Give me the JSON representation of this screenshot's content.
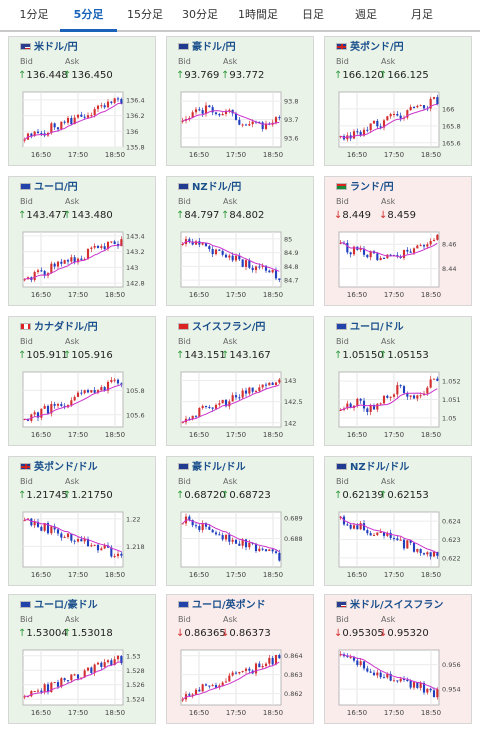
{
  "tabs": [
    {
      "label": "1分足",
      "active": false
    },
    {
      "label": "5分足",
      "active": true
    },
    {
      "label": "15分足",
      "active": false
    },
    {
      "label": "30分足",
      "active": false
    },
    {
      "label": "1時間足",
      "active": false
    },
    {
      "label": "日足",
      "active": false
    },
    {
      "label": "週足",
      "active": false
    },
    {
      "label": "月足",
      "active": false
    }
  ],
  "labels": {
    "bid": "Bid",
    "ask": "Ask"
  },
  "colors": {
    "up_bg": "#eaf3e8",
    "down_bg": "#fbecec",
    "title": "#1a4f8c",
    "up": "#2e9a3a",
    "down": "#d22b2b",
    "ma": "#cc33cc",
    "candle_up": "#d32f2f",
    "candle_down": "#1f3fbf"
  },
  "panels": [
    {
      "name": "米ドル/円",
      "flag": "us",
      "trend": "up",
      "bid": "136.448",
      "ask": "136.450",
      "chart_data": {
        "type": "candlestick",
        "x_ticks": [
          "16:50",
          "17:50",
          "18:50"
        ],
        "y_ticks": [
          "136.4",
          "136.2",
          "136",
          "135.8"
        ],
        "ylim": [
          135.8,
          136.5
        ],
        "trend": "up"
      }
    },
    {
      "name": "豪ドル/円",
      "flag": "au",
      "trend": "up",
      "bid": "93.769",
      "ask": "93.772",
      "chart_data": {
        "type": "candlestick",
        "x_ticks": [
          "16:50",
          "17:50",
          "18:50"
        ],
        "y_ticks": [
          "93.8",
          "93.7",
          "93.6"
        ],
        "ylim": [
          93.55,
          93.85
        ],
        "trend": "flat"
      }
    },
    {
      "name": "英ポンド/円",
      "flag": "gb",
      "trend": "up",
      "bid": "166.120",
      "ask": "166.125",
      "chart_data": {
        "type": "candlestick",
        "x_ticks": [
          "16:50",
          "17:50",
          "18:50"
        ],
        "y_ticks": [
          "166",
          "165.8",
          "165.6"
        ],
        "ylim": [
          165.55,
          166.2
        ],
        "trend": "up"
      }
    },
    {
      "name": "ユーロ/円",
      "flag": "eu",
      "trend": "up",
      "bid": "143.477",
      "ask": "143.480",
      "chart_data": {
        "type": "candlestick",
        "x_ticks": [
          "16:50",
          "17:50",
          "18:50"
        ],
        "y_ticks": [
          "143.4",
          "143.2",
          "143",
          "142.8"
        ],
        "ylim": [
          142.75,
          143.45
        ],
        "trend": "up"
      }
    },
    {
      "name": "NZドル/円",
      "flag": "nz",
      "trend": "up",
      "bid": "84.797",
      "ask": "84.802",
      "chart_data": {
        "type": "candlestick",
        "x_ticks": [
          "16:50",
          "17:50",
          "18:50"
        ],
        "y_ticks": [
          "85",
          "84.9",
          "84.8",
          "84.7"
        ],
        "ylim": [
          84.65,
          85.05
        ],
        "trend": "down"
      }
    },
    {
      "name": "ランド/円",
      "flag": "za",
      "trend": "down",
      "bid": "8.449",
      "ask": "8.459",
      "chart_data": {
        "type": "candlestick",
        "x_ticks": [
          "16:50",
          "17:50",
          "18:50"
        ],
        "y_ticks": [
          "8.46",
          "8.44"
        ],
        "ylim": [
          8.425,
          8.47
        ],
        "trend": "vdip"
      }
    },
    {
      "name": "カナダドル/円",
      "flag": "ca",
      "trend": "up",
      "bid": "105.911",
      "ask": "105.916",
      "chart_data": {
        "type": "candlestick",
        "x_ticks": [
          "16:50",
          "17:50",
          "18:50"
        ],
        "y_ticks": [
          "105.8",
          "105.6"
        ],
        "ylim": [
          105.5,
          105.95
        ],
        "trend": "up"
      }
    },
    {
      "name": "スイスフラン/円",
      "flag": "ch",
      "trend": "up",
      "bid": "143.151",
      "ask": "143.167",
      "chart_data": {
        "type": "candlestick",
        "x_ticks": [
          "16:50",
          "17:50",
          "18:50"
        ],
        "y_ticks": [
          "143",
          "142.5",
          "142"
        ],
        "ylim": [
          141.9,
          143.2
        ],
        "trend": "up"
      }
    },
    {
      "name": "ユーロ/ドル",
      "flag": "eu",
      "trend": "up",
      "bid": "1.05150",
      "ask": "1.05153",
      "chart_data": {
        "type": "candlestick",
        "x_ticks": [
          "16:50",
          "17:50",
          "18:50"
        ],
        "y_ticks": [
          "1.052",
          "1.051",
          "1.05"
        ],
        "ylim": [
          1.0495,
          1.0525
        ],
        "trend": "upvolatile"
      }
    },
    {
      "name": "英ポンド/ドル",
      "flag": "gb",
      "trend": "up",
      "bid": "1.21745",
      "ask": "1.21750",
      "chart_data": {
        "type": "candlestick",
        "x_ticks": [
          "16:50",
          "17:50",
          "18:50"
        ],
        "y_ticks": [
          "1.22",
          "1.218"
        ],
        "ylim": [
          1.2165,
          1.2205
        ],
        "trend": "down"
      }
    },
    {
      "name": "豪ドル/ドル",
      "flag": "au",
      "trend": "up",
      "bid": "0.68720",
      "ask": "0.68723",
      "chart_data": {
        "type": "candlestick",
        "x_ticks": [
          "16:50",
          "17:50",
          "18:50"
        ],
        "y_ticks": [
          "0.689",
          "0.688"
        ],
        "ylim": [
          0.6866,
          0.6893
        ],
        "trend": "down"
      }
    },
    {
      "name": "NZドル/ドル",
      "flag": "nz",
      "trend": "up",
      "bid": "0.62139",
      "ask": "0.62153",
      "chart_data": {
        "type": "candlestick",
        "x_ticks": [
          "16:50",
          "17:50",
          "18:50"
        ],
        "y_ticks": [
          "0.624",
          "0.623",
          "0.622"
        ],
        "ylim": [
          0.6215,
          0.6245
        ],
        "trend": "down"
      }
    },
    {
      "name": "ユーロ/豪ドル",
      "flag": "eu",
      "trend": "up",
      "bid": "1.53004",
      "ask": "1.53018",
      "chart_data": {
        "type": "candlestick",
        "x_ticks": [
          "16:50",
          "17:50",
          "18:50"
        ],
        "y_ticks": [
          "1.53",
          "1.528",
          "1.526",
          "1.524"
        ],
        "ylim": [
          1.5232,
          1.5308
        ],
        "trend": "up"
      }
    },
    {
      "name": "ユーロ/英ポンド",
      "flag": "eu",
      "trend": "down",
      "bid": "0.86365",
      "ask": "0.86373",
      "chart_data": {
        "type": "candlestick",
        "x_ticks": [
          "16:50",
          "17:50",
          "18:50"
        ],
        "y_ticks": [
          "0.864",
          "0.863",
          "0.862"
        ],
        "ylim": [
          0.8614,
          0.8643
        ],
        "trend": "up"
      }
    },
    {
      "name": "米ドル/スイスフラン",
      "flag": "us",
      "trend": "down",
      "bid": "0.95305",
      "ask": "0.95320",
      "chart_data": {
        "type": "candlestick",
        "x_ticks": [
          "16:50",
          "17:50",
          "18:50"
        ],
        "y_ticks": [
          "0.956",
          "0.954"
        ],
        "ylim": [
          0.9527,
          0.9572
        ],
        "trend": "down"
      }
    }
  ]
}
